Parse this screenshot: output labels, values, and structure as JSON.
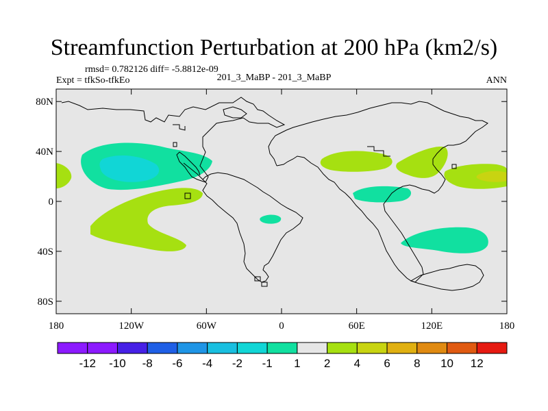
{
  "chart_data": {
    "type": "heatmap",
    "title": "Streamfunction Perturbation at 200 hPa (km2/s)",
    "subtitle_left_top": "rmsd= 0.782126 diff= -5.8812e-09",
    "subtitle_left": "Expt = tfkSo-tfkEo",
    "subtitle_center": "201_3_MaBP - 201_3_MaBP",
    "subtitle_right": "ANN",
    "x_ticks": [
      "180",
      "120W",
      "60W",
      "0",
      "60E",
      "120E",
      "180"
    ],
    "y_ticks": [
      "80N",
      "40N",
      "0",
      "40S",
      "80S"
    ],
    "xlim": [
      -180,
      180
    ],
    "ylim": [
      -90,
      90
    ],
    "background_color": "#e6e6e6",
    "colorbar": {
      "labels": [
        "-12",
        "-10",
        "-8",
        "-6",
        "-4",
        "-2",
        "-1",
        "1",
        "2",
        "4",
        "6",
        "8",
        "10",
        "12"
      ],
      "colors": [
        "#8c1aff",
        "#4620e6",
        "#1f5fe6",
        "#1f95e6",
        "#19bfe0",
        "#11d6d6",
        "#11e0a0",
        "#e6e6e6",
        "#a6e011",
        "#c8d411",
        "#e0b011",
        "#e08a11",
        "#e05a11",
        "#e61a11"
      ]
    },
    "regions": [
      {
        "name": "north-pacific-low",
        "value_range": "-2 to -1",
        "color": "#11e0a0"
      },
      {
        "name": "north-pacific-low-core",
        "value_range": "-4 to -2",
        "color": "#11d6d6"
      },
      {
        "name": "south-pacific-high",
        "value_range": "1 to 2",
        "color": "#a6e011"
      },
      {
        "name": "dateline-north-high",
        "value_range": "2 to 4",
        "color": "#c8d411"
      },
      {
        "name": "asia-high",
        "value_range": "1 to 2",
        "color": "#a6e011"
      },
      {
        "name": "indian-ocean-low",
        "value_range": "-2 to -1",
        "color": "#11e0a0"
      },
      {
        "name": "atlantic-low-small",
        "value_range": "-2 to -1",
        "color": "#11e0a0"
      },
      {
        "name": "south-indian-low",
        "value_range": "-2 to -1",
        "color": "#11e0a0"
      }
    ]
  }
}
